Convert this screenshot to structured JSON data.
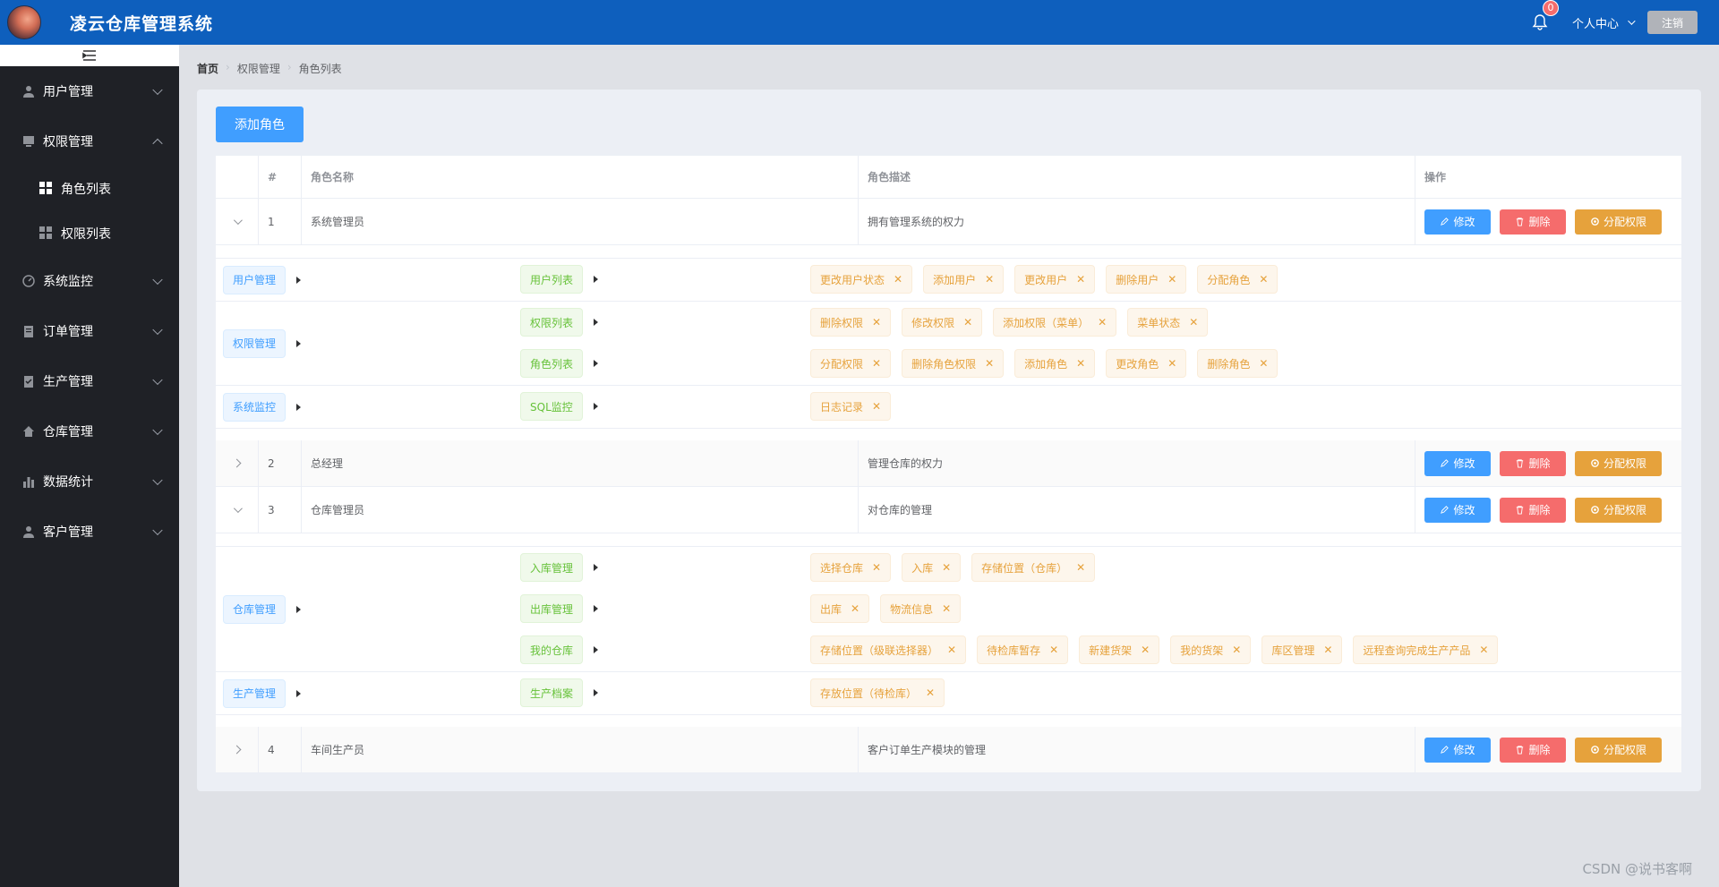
{
  "header": {
    "title": "凌云仓库管理系统",
    "notif_count": "0",
    "user_center": "个人中心",
    "logout": "注销"
  },
  "sidebar": {
    "items": [
      {
        "label": "用户管理",
        "icon": "user-icon"
      },
      {
        "label": "权限管理",
        "icon": "monitor-icon",
        "expanded": true,
        "children": [
          {
            "label": "角色列表"
          },
          {
            "label": "权限列表"
          }
        ]
      },
      {
        "label": "系统监控",
        "icon": "gauge-icon"
      },
      {
        "label": "订单管理",
        "icon": "clipboard-icon"
      },
      {
        "label": "生产管理",
        "icon": "checklist-icon"
      },
      {
        "label": "仓库管理",
        "icon": "house-icon"
      },
      {
        "label": "数据统计",
        "icon": "bar-chart-icon"
      },
      {
        "label": "客户管理",
        "icon": "customer-icon"
      }
    ]
  },
  "breadcrumb": [
    "首页",
    "权限管理",
    "角色列表"
  ],
  "toolbar": {
    "add_role": "添加角色"
  },
  "table": {
    "headers": {
      "idx": "#",
      "name": "角色名称",
      "desc": "角色描述",
      "ops": "操作"
    },
    "actions": {
      "edit": "修改",
      "delete": "删除",
      "assign": "分配权限"
    },
    "rows": [
      {
        "idx": "1",
        "name": "系统管理员",
        "desc": "拥有管理系统的权力"
      },
      {
        "idx": "2",
        "name": "总经理",
        "desc": "管理仓库的权力"
      },
      {
        "idx": "3",
        "name": "仓库管理员",
        "desc": "对仓库的管理"
      },
      {
        "idx": "4",
        "name": "车间生产员",
        "desc": "客户订单生产模块的管理"
      }
    ],
    "expand1": {
      "g1": {
        "l1": "用户管理",
        "l2": [
          {
            "label": "用户列表",
            "l3": [
              "更改用户状态",
              "添加用户",
              "更改用户",
              "删除用户",
              "分配角色"
            ]
          }
        ]
      },
      "g2": {
        "l1": "权限管理",
        "l2": [
          {
            "label": "权限列表",
            "l3": [
              "删除权限",
              "修改权限",
              "添加权限（菜单）",
              "菜单状态"
            ]
          },
          {
            "label": "角色列表",
            "l3": [
              "分配权限",
              "删除角色权限",
              "添加角色",
              "更改角色",
              "删除角色"
            ]
          }
        ]
      },
      "g3": {
        "l1": "系统监控",
        "l2": [
          {
            "label": "SQL监控",
            "l3": [
              "日志记录"
            ]
          }
        ]
      }
    },
    "expand3": {
      "g1": {
        "l1": "仓库管理",
        "l2": [
          {
            "label": "入库管理",
            "l3": [
              "选择仓库",
              "入库",
              "存储位置（仓库）"
            ]
          },
          {
            "label": "出库管理",
            "l3": [
              "出库",
              "物流信息"
            ]
          },
          {
            "label": "我的仓库",
            "l3": [
              "存储位置（级联选择器）",
              "待检库暂存",
              "新建货架",
              "我的货架",
              "库区管理",
              "远程查询完成生产产品"
            ]
          }
        ]
      },
      "g2": {
        "l1": "生产管理",
        "l2": [
          {
            "label": "生产档案",
            "l3": [
              "存放位置（待检库）"
            ]
          }
        ]
      }
    }
  },
  "watermark": "CSDN @说书客啊"
}
